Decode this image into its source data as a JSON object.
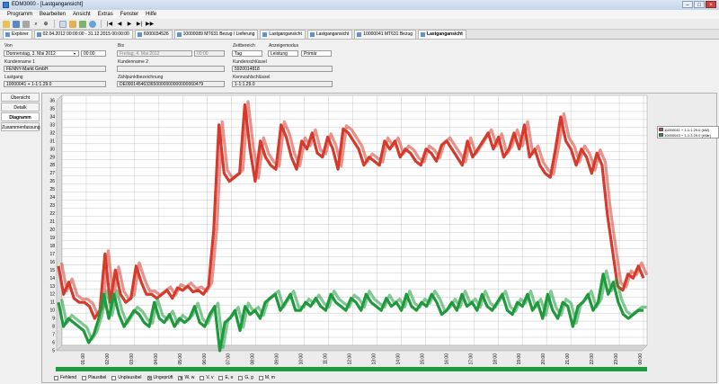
{
  "window": {
    "title": "EDM3000 - [Lastgangansicht]",
    "controls": [
      "–",
      "□",
      "×"
    ]
  },
  "menu": [
    "Programm",
    "Bearbeiten",
    "Ansicht",
    "Extras",
    "Fenster",
    "Hilfe"
  ],
  "toolbar": {
    "icons": [
      "open-icon",
      "save-icon",
      "print-icon",
      "search-icon",
      "zoom-icon",
      "table-icon",
      "chart-icon",
      "export-icon",
      "globe-icon",
      "first-icon",
      "prev-icon",
      "play-icon",
      "next-icon",
      "last-icon"
    ]
  },
  "tabs": [
    {
      "label": "Explorer",
      "active": false
    },
    {
      "label": "02.04.2012 00:00:00 - 31.12.2015 00:00:00",
      "active": false
    },
    {
      "label": "6000034526",
      "active": false
    },
    {
      "label": "10000089 MT631 Bezug / Lieferung",
      "active": false
    },
    {
      "label": "Lastgangansicht",
      "active": false
    },
    {
      "label": "Lastgangansicht",
      "active": false
    },
    {
      "label": "10000041 MT631 Bezug",
      "active": false
    },
    {
      "label": "Lastgangansicht",
      "active": true
    }
  ],
  "form": {
    "von_label": "Von",
    "von_date": "Donnerstag, 3. Mai 2012",
    "von_time": "00:00",
    "bis_label": "Bis",
    "bis_date": "Freitag, 4. Mai 2012",
    "bis_time": "00:00",
    "zeitbereich_label": "Zeitbereich",
    "zeitbereich_value": "Tag",
    "anzeigemodus_label": "Anzeigemodus",
    "anzeigemodus_value": "Leistung",
    "anzeigemodus_value2": "Primär",
    "kundenname1_label": "Kundenname 1",
    "kundenname1_value": "FENNY-Markt GmbH",
    "kundenname2_label": "Kundenname 2",
    "kundenname2_value": "",
    "kundenschluessel_label": "Kundenschlüssel",
    "kundenschluessel_value": "5920014818",
    "lastgang_label": "Lastgang",
    "lastgang_value": "10000041 + 1-1:1.29.0",
    "zaehlpunkt_label": "Zählpunktbezeichnung",
    "zaehlpunkt_value": "DE0001454633650000000000000060479",
    "kennzahl_label": "Kennzahlschlüssel",
    "kennzahl_value": "1-1:1.29.0"
  },
  "sidenav": [
    {
      "label": "Übersicht",
      "active": false
    },
    {
      "label": "Detalk",
      "active": false
    },
    {
      "label": "Diagramm",
      "active": true
    },
    {
      "label": "Zusammenfassung",
      "active": false
    }
  ],
  "chart_data": {
    "type": "line",
    "title": "",
    "xlabel": "",
    "ylabel": "",
    "ylim": [
      5,
      36
    ],
    "yticks": [
      5,
      6,
      7,
      8,
      9,
      10,
      11,
      12,
      13,
      14,
      15,
      16,
      17,
      18,
      19,
      20,
      21,
      22,
      23,
      24,
      25,
      26,
      27,
      28,
      29,
      30,
      31,
      32,
      33,
      34,
      35,
      36
    ],
    "xticks": [
      "01:00",
      "02:00",
      "03:00",
      "04:00",
      "05:00",
      "06:00",
      "07:00",
      "08:00",
      "09:00",
      "10:00",
      "11:00",
      "12:00",
      "13:00",
      "14:00",
      "15:00",
      "16:00",
      "17:00",
      "18:00",
      "19:00",
      "20:00",
      "21:00",
      "22:00",
      "23:00",
      "00:00"
    ],
    "grid": true,
    "legend_position": "right",
    "series": [
      {
        "name": "10000041 + 1-1:1.29.0 (kW)",
        "color": "#d63a2c",
        "values": [
          15.5,
          12,
          13.5,
          11.5,
          11,
          11,
          10.5,
          9,
          10,
          17,
          11,
          15,
          12,
          11,
          11.5,
          15.5,
          13.5,
          12,
          12,
          11.5,
          12,
          12.5,
          11.5,
          12.8,
          12.5,
          13,
          12.3,
          12.5,
          12,
          13,
          20,
          33,
          27,
          26,
          26.5,
          27,
          35.5,
          30,
          26,
          31,
          29,
          28,
          27.5,
          33,
          31.5,
          29,
          27.5,
          31,
          30,
          32,
          29.5,
          29,
          31.5,
          30,
          27.5,
          32.5,
          32,
          31,
          30,
          28,
          29,
          28.5,
          28,
          31,
          30,
          31,
          29,
          30,
          29.5,
          28.5,
          28,
          30,
          29.5,
          28.5,
          30.5,
          31,
          30,
          29,
          28,
          31,
          29,
          30,
          31,
          32,
          30,
          31.5,
          29,
          30,
          32,
          30,
          33,
          29,
          30,
          28,
          27,
          26.5,
          30,
          34,
          31,
          30,
          28,
          30,
          29,
          27,
          29.5,
          28,
          22,
          17.5,
          13,
          12.5,
          14.5,
          14,
          15.5,
          14
        ]
      },
      {
        "name": "10000043 + 1-1:3.29.0 (kVar)",
        "color": "#1e9a3c",
        "values": [
          11,
          8,
          9,
          8.5,
          8,
          7.5,
          6,
          7,
          9,
          12,
          9,
          12,
          9.5,
          8,
          9,
          10,
          9.5,
          8.5,
          8,
          11,
          9,
          8.5,
          9.5,
          8,
          9,
          8.5,
          9,
          10.5,
          8.5,
          8,
          9.5,
          10.5,
          5,
          8.5,
          9,
          10,
          7.5,
          10.5,
          9.5,
          10,
          9,
          11,
          11.5,
          12,
          10,
          11,
          12,
          10,
          10,
          11,
          10.5,
          11.5,
          10.5,
          10,
          12,
          11,
          10.5,
          10,
          11.5,
          11,
          10,
          12,
          11,
          10.5,
          10,
          11.5,
          10.5,
          11,
          10,
          12,
          10.5,
          10,
          11,
          10.5,
          12,
          11,
          9.5,
          10,
          11,
          10,
          12,
          10.5,
          11,
          10,
          12,
          10.5,
          10,
          11,
          12,
          10,
          9.5,
          11,
          10.5,
          12,
          10,
          11,
          9,
          12,
          10,
          9,
          11,
          10.5,
          8,
          10.5,
          11,
          12,
          10,
          11,
          14.5,
          12,
          13.5,
          11,
          9.5,
          9,
          9.5,
          10,
          10
        ]
      }
    ]
  },
  "filters": [
    {
      "label": "Fehlend",
      "checked": false
    },
    {
      "label": "Plausibel",
      "checked": false
    },
    {
      "label": "Unplausibel",
      "checked": false
    },
    {
      "label": "Ungeprüft",
      "checked": true
    },
    {
      "label": "W, w",
      "checked": true
    },
    {
      "label": "V, v",
      "checked": false
    },
    {
      "label": "E, e",
      "checked": false
    },
    {
      "label": "G, g",
      "checked": false
    },
    {
      "label": "M, m",
      "checked": false
    }
  ],
  "colors": {
    "accent": "#3a7bd5",
    "status_bar": "#1e9a3c"
  }
}
